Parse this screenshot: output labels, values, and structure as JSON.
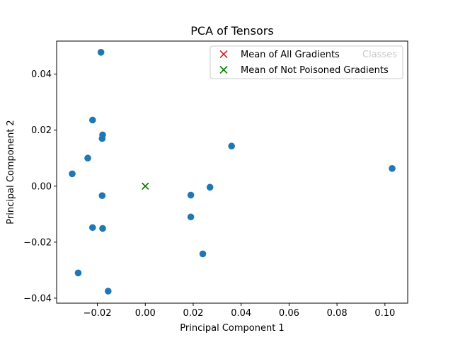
{
  "chart_data": {
    "type": "scatter",
    "title": "PCA of Tensors",
    "xlabel": "Principal Component 1",
    "ylabel": "Principal Component 2",
    "xlim": [
      -0.037,
      0.1095
    ],
    "ylim": [
      -0.0418,
      0.0518
    ],
    "x_ticks": [
      -0.02,
      0.0,
      0.02,
      0.04,
      0.06,
      0.08,
      0.1
    ],
    "x_tick_labels": [
      "−0.02",
      "0.00",
      "0.02",
      "0.04",
      "0.06",
      "0.08",
      "0.10"
    ],
    "y_ticks": [
      -0.04,
      -0.02,
      0.0,
      0.02,
      0.04
    ],
    "y_tick_labels": [
      "−0.04",
      "−0.02",
      "0.00",
      "0.02",
      "0.04"
    ],
    "grid": false,
    "legend_placement": "top-right",
    "series": [
      {
        "marker": "circle",
        "color": "#1f77b4",
        "points": [
          [
            -0.0185,
            0.0478
          ],
          [
            -0.022,
            0.0236
          ],
          [
            -0.0178,
            0.0183
          ],
          [
            -0.018,
            0.017
          ],
          [
            -0.024,
            0.01
          ],
          [
            -0.0305,
            0.0044
          ],
          [
            -0.018,
            -0.0034
          ],
          [
            -0.022,
            -0.0148
          ],
          [
            -0.0178,
            -0.0151
          ],
          [
            -0.028,
            -0.031
          ],
          [
            -0.0155,
            -0.0375
          ],
          [
            0.019,
            -0.0032
          ],
          [
            0.019,
            -0.011
          ],
          [
            0.027,
            -0.0004
          ],
          [
            0.024,
            -0.0242
          ],
          [
            0.036,
            0.0143
          ],
          [
            0.103,
            0.0063
          ]
        ]
      },
      {
        "name": "Mean of All Gradients",
        "marker": "x",
        "color": "#d62728",
        "points": [
          [
            0.0,
            0.0
          ]
        ]
      },
      {
        "name": "Mean of Not Poisoned Gradients",
        "marker": "x",
        "color": "#008000",
        "points": [
          [
            0.0,
            0.0
          ]
        ]
      }
    ],
    "legend_extra_label": "Classes"
  }
}
